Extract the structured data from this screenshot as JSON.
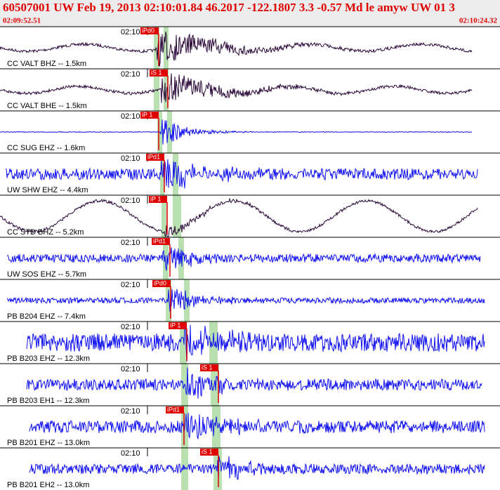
{
  "header": {
    "title": "60507001 UW Feb 19, 2013 02:10:01.84   46.2017 -122.1807  3.3 -0.57 Md le amyw UW 01   3",
    "start_time": "02:09:52.51",
    "end_time": "02:10:24.32"
  },
  "traces": [
    {
      "label": "CC VALT BHZ -- 1.5km",
      "time_label": "02:10",
      "pick": "iPd0"
    },
    {
      "label": "CC VALT BHE -- 1.5km",
      "time_label": "02:10",
      "pick": "iS 1"
    },
    {
      "label": "CC SUG EHZ -- 1.6km",
      "time_label": "02:10",
      "pick": "iP 1"
    },
    {
      "label": "UW SHW EHZ -- 4.4km",
      "time_label": "02:10",
      "pick": "iPd1"
    },
    {
      "label": "CC STD BHZ -- 5.2km",
      "time_label": "02:10",
      "pick": "iP 1"
    },
    {
      "label": "UW SOS EHZ -- 5.7km",
      "time_label": "02:10",
      "pick": "iPd1"
    },
    {
      "label": "PB B204 EHZ -- 7.4km",
      "time_label": "02:10",
      "pick": "iPd0"
    },
    {
      "label": "PB B203 EHZ -- 12.3km",
      "time_label": "02:10",
      "pick": "iP 1"
    },
    {
      "label": "PB B203 EH1 -- 12.3km",
      "time_label": "02:10",
      "pick": "iS 1"
    },
    {
      "label": "PB B201 EHZ -- 13.0km",
      "time_label": "02:10",
      "pick": "iPd1"
    },
    {
      "label": "PB B201 EH2 -- 13.0km",
      "time_label": "02:10",
      "pick": "iS 1"
    }
  ]
}
